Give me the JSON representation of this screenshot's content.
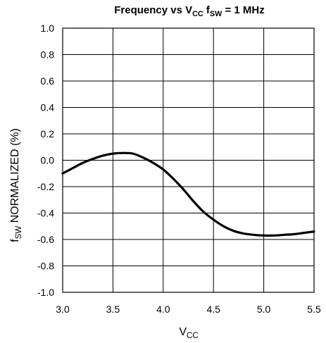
{
  "chart_data": {
    "type": "line",
    "title": {
      "parts": [
        {
          "text": "Frequency vs V",
          "sub": false
        },
        {
          "text": "CC",
          "sub": true
        },
        {
          "text": " f",
          "sub": false
        },
        {
          "text": "SW",
          "sub": true
        },
        {
          "text": " = 1 MHz",
          "sub": false
        }
      ]
    },
    "xlabel": {
      "parts": [
        {
          "text": "V",
          "sub": false
        },
        {
          "text": "CC",
          "sub": true
        }
      ]
    },
    "ylabel": {
      "parts": [
        {
          "text": "f",
          "sub": false
        },
        {
          "text": "SW",
          "sub": true
        },
        {
          "text": " NORMALIZED (%)",
          "sub": false
        }
      ]
    },
    "xlim": [
      3.0,
      5.5
    ],
    "ylim": [
      -1.0,
      1.0
    ],
    "xticks": [
      "3.0",
      "3.5",
      "4.0",
      "4.5",
      "5.0",
      "5.5"
    ],
    "yticks": [
      "1.0",
      "0.8",
      "0.6",
      "0.4",
      "0.2",
      "0.0",
      "-0.2",
      "-0.4",
      "-0.6",
      "-0.8",
      "-1.0"
    ],
    "grid": true,
    "line_color": "#000000",
    "series": [
      {
        "x": [
          3.0,
          3.1,
          3.2,
          3.3,
          3.4,
          3.5,
          3.6,
          3.7,
          3.8,
          3.9,
          4.0,
          4.1,
          4.2,
          4.3,
          4.4,
          4.5,
          4.6,
          4.7,
          4.8,
          4.9,
          5.0,
          5.1,
          5.2,
          5.3,
          5.4,
          5.5
        ],
        "y": [
          -0.1,
          -0.06,
          -0.02,
          0.01,
          0.035,
          0.05,
          0.055,
          0.05,
          0.02,
          -0.02,
          -0.07,
          -0.14,
          -0.22,
          -0.31,
          -0.39,
          -0.45,
          -0.5,
          -0.535,
          -0.555,
          -0.565,
          -0.57,
          -0.57,
          -0.565,
          -0.56,
          -0.55,
          -0.54
        ]
      }
    ]
  }
}
